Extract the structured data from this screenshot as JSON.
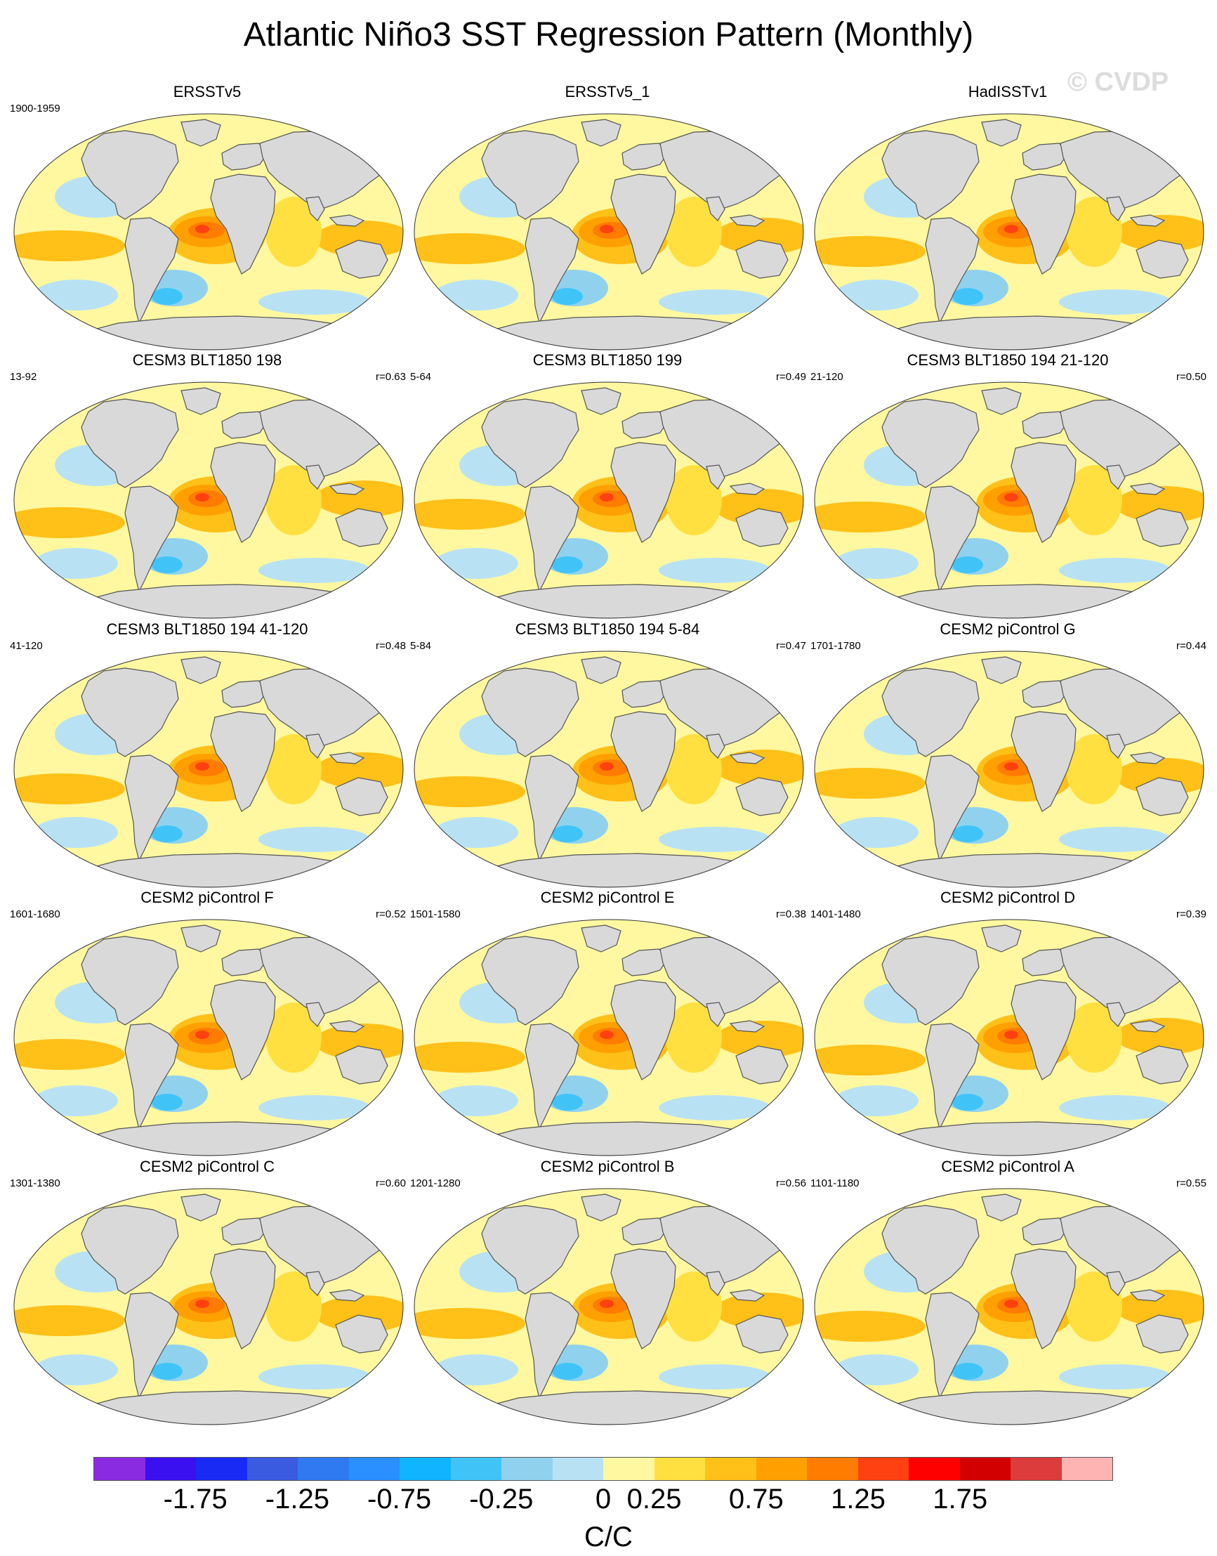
{
  "figure": {
    "title": "Atlantic Niño3 SST Regression Pattern (Monthly)",
    "watermark": "© CVDP"
  },
  "panels": [
    {
      "title": "ERSSTv5",
      "period": "1900-1959",
      "corr": ""
    },
    {
      "title": "ERSSTv5_1",
      "period": "",
      "corr": ""
    },
    {
      "title": "HadISSTv1",
      "period": "",
      "corr": ""
    },
    {
      "title": "CESM3 BLT1850 198",
      "period": "13-92",
      "corr": "r=0.63"
    },
    {
      "title": "CESM3 BLT1850 199",
      "period": "5-64",
      "corr": "r=0.49"
    },
    {
      "title": "CESM3 BLT1850 194 21-120",
      "period": "21-120",
      "corr": "r=0.50"
    },
    {
      "title": "CESM3 BLT1850 194 41-120",
      "period": "41-120",
      "corr": "r=0.48"
    },
    {
      "title": "CESM3 BLT1850 194 5-84",
      "period": "5-84",
      "corr": "r=0.47"
    },
    {
      "title": "CESM2 piControl G",
      "period": "1701-1780",
      "corr": "r=0.44"
    },
    {
      "title": "CESM2 piControl F",
      "period": "1601-1680",
      "corr": "r=0.52"
    },
    {
      "title": "CESM2 piControl E",
      "period": "1501-1580",
      "corr": "r=0.38"
    },
    {
      "title": "CESM2 piControl D",
      "period": "1401-1480",
      "corr": "r=0.39"
    },
    {
      "title": "CESM2 piControl C",
      "period": "1301-1380",
      "corr": "r=0.60"
    },
    {
      "title": "CESM2 piControl B",
      "period": "1201-1280",
      "corr": "r=0.56"
    },
    {
      "title": "CESM2 piControl A",
      "period": "1101-1180",
      "corr": "r=0.55"
    }
  ],
  "colorbar": {
    "units": "C/C",
    "colors": [
      "#8a2be2",
      "#3a10f0",
      "#1a2af5",
      "#3a5ae0",
      "#2f7af0",
      "#2a90ff",
      "#10b4ff",
      "#40c4f8",
      "#90d2ee",
      "#b8e2f4",
      "#fff8a0",
      "#ffe040",
      "#ffc018",
      "#ffa000",
      "#ff7c00",
      "#ff4010",
      "#ff0000",
      "#d20000",
      "#dc3c3c",
      "#ffb4b4"
    ],
    "tick_labels": [
      "-1.75",
      "-1.25",
      "-0.75",
      "-0.25",
      "0",
      "0.25",
      "0.75",
      "1.25",
      "1.75"
    ]
  },
  "map_style": {
    "ocean_base": "#fff8a0",
    "land": "#d9d9d9",
    "coast": "#555555"
  }
}
